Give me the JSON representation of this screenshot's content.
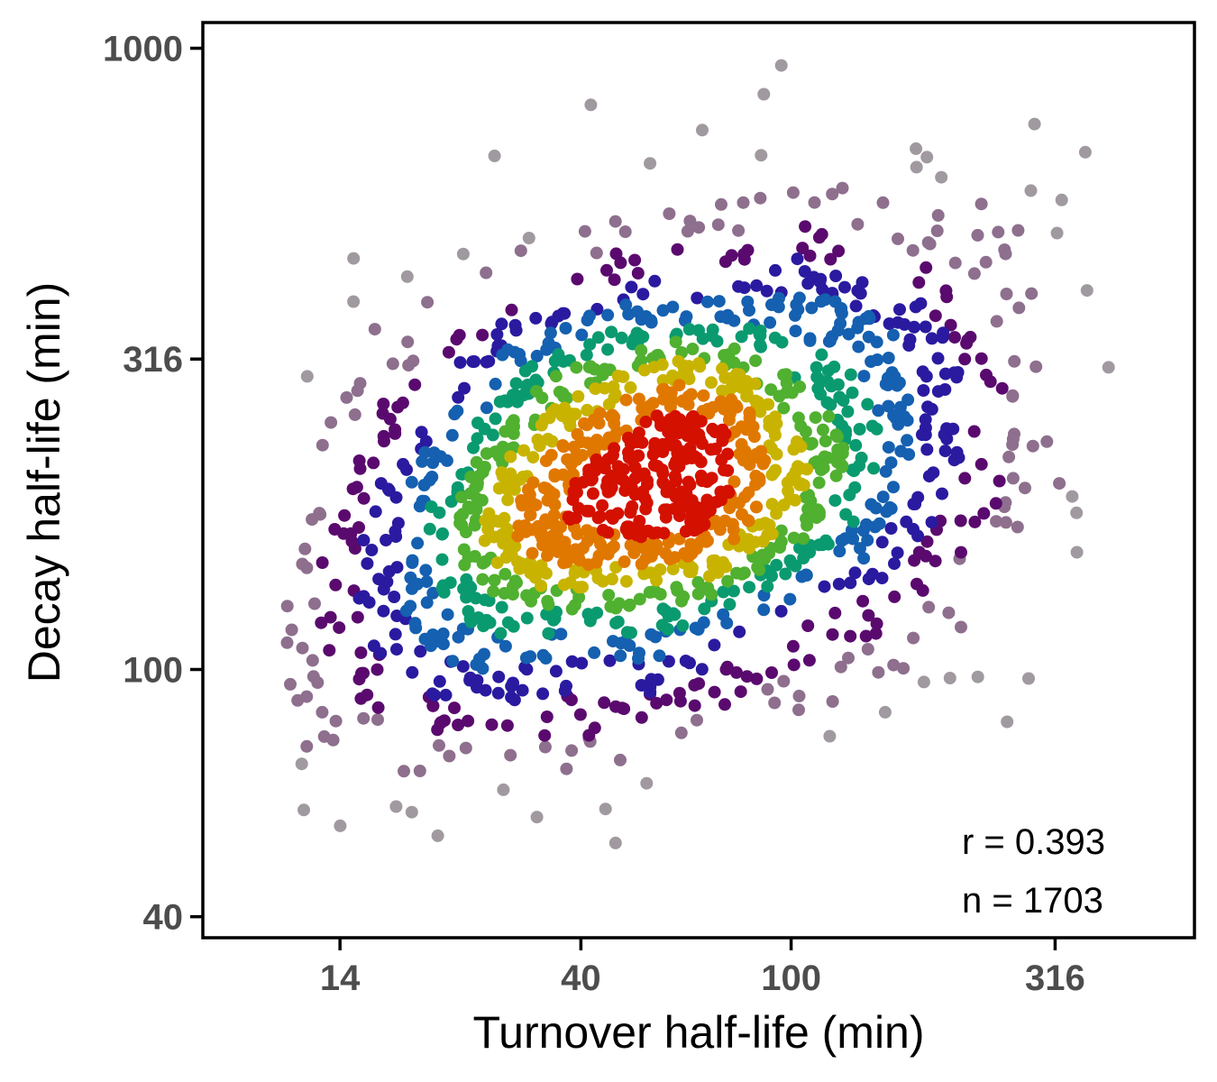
{
  "chart_data": {
    "type": "scatter",
    "title": "",
    "xlabel": "Turnover half-life (min)",
    "ylabel": "Decay half-life (min)",
    "x_scale": "log",
    "y_scale": "log",
    "xlim": [
      7.7,
      580
    ],
    "ylim": [
      37,
      1100
    ],
    "x_ticks": [
      {
        "value": 14,
        "label": "14"
      },
      {
        "value": 40,
        "label": "40"
      },
      {
        "value": 100,
        "label": "100"
      },
      {
        "value": 316,
        "label": "316"
      }
    ],
    "y_ticks": [
      {
        "value": 40,
        "label": "40"
      },
      {
        "value": 100,
        "label": "100"
      },
      {
        "value": 316,
        "label": "316"
      },
      {
        "value": 1000,
        "label": "1000"
      }
    ],
    "grid": false,
    "color_encoding": "point density (grey low, purple, blue, green, yellow, red high)",
    "density_colors": [
      "#a09aa0",
      "#8e6f8e",
      "#5a0a6e",
      "#2a1aa0",
      "#1560b0",
      "#0a9a70",
      "#50b030",
      "#c8b400",
      "#e07800",
      "#d41000"
    ],
    "n": 1703,
    "correlation_r": 0.393,
    "distribution": {
      "center": {
        "x": 55,
        "y": 200
      },
      "spread_log10": {
        "x": 0.33,
        "y": 0.21
      },
      "correlation": 0.393
    },
    "annotations": [
      {
        "text": "r = 0.393"
      },
      {
        "text": "n = 1703"
      }
    ]
  }
}
